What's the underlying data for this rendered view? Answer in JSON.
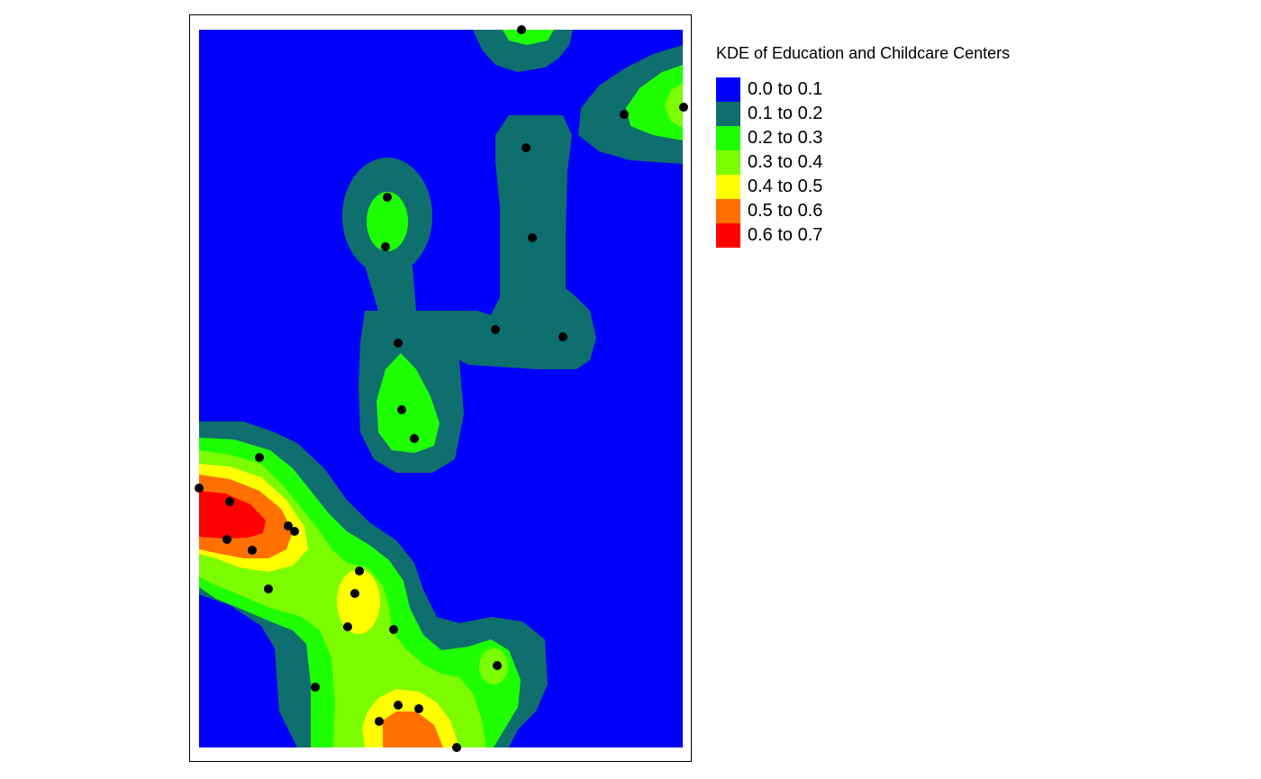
{
  "legend": {
    "title": "KDE of Education and Childcare Centers",
    "items": [
      {
        "label": "0.0 to 0.1",
        "color": "#0000FF"
      },
      {
        "label": "0.1 to 0.2",
        "color": "#0F6E6E"
      },
      {
        "label": "0.2 to 0.3",
        "color": "#1EFF00"
      },
      {
        "label": "0.3 to 0.4",
        "color": "#7CFC00"
      },
      {
        "label": "0.4 to 0.5",
        "color": "#FFFF00"
      },
      {
        "label": "0.5 to 0.6",
        "color": "#FF7000"
      },
      {
        "label": "0.6 to 0.7",
        "color": "#FF0000"
      }
    ]
  },
  "map": {
    "point_color": "#000000",
    "frame_color": "#000000"
  }
}
